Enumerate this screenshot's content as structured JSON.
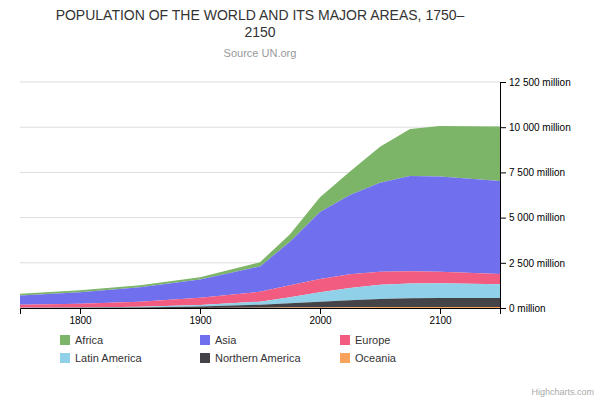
{
  "chart_data": {
    "type": "area",
    "stacked": true,
    "title": "POPULATION OF THE WORLD AND ITS MAJOR AREAS, 1750–\n2150",
    "subtitle": "Source UN.org",
    "annotations": [
      "Highcharts.com"
    ],
    "x": [
      1750,
      1800,
      1850,
      1900,
      1950,
      1975,
      2000,
      2025,
      2050,
      2075,
      2100,
      2150
    ],
    "series": [
      {
        "name": "Africa",
        "color": "#7cb568",
        "values": [
          106,
          107,
          111,
          133,
          229,
          416,
          811,
          1300,
          2000,
          2600,
          2800,
          3003
        ]
      },
      {
        "name": "Asia",
        "color": "#7070ee",
        "values": [
          502,
          635,
          809,
          1000,
          1403,
          2397,
          3714,
          4394,
          4923,
          5267,
          5268,
          5142
        ]
      },
      {
        "name": "Europe",
        "color": "#f15c80",
        "values": [
          163,
          203,
          276,
          408,
          547,
          676,
          730,
          750,
          720,
          680,
          640,
          580
        ]
      },
      {
        "name": "Latin America",
        "color": "#90d0e8",
        "values": [
          16,
          24,
          38,
          74,
          167,
          324,
          521,
          680,
          783,
          820,
          809,
          750
        ]
      },
      {
        "name": "Northern America",
        "color": "#434348",
        "values": [
          2,
          7,
          26,
          82,
          172,
          243,
          319,
          388,
          446,
          481,
          499,
          500
        ]
      },
      {
        "name": "Oceania",
        "color": "#f7a35c",
        "values": [
          2,
          2,
          2,
          6,
          13,
          21,
          31,
          42,
          51,
          56,
          57,
          57
        ]
      }
    ],
    "xlim": [
      1750,
      2150
    ],
    "xticks": [
      1800,
      1900,
      2000,
      2100
    ],
    "ylim": [
      0,
      12500
    ],
    "yticks": [
      {
        "value": 0,
        "label": "0 million"
      },
      {
        "value": 2500,
        "label": "2 500 million"
      },
      {
        "value": 5000,
        "label": "5 000 million"
      },
      {
        "value": 7500,
        "label": "7 500 million"
      },
      {
        "value": 10000,
        "label": "10 000 million"
      },
      {
        "value": 12500,
        "label": "12 500 million"
      }
    ],
    "grid": true,
    "legend": "bottom"
  }
}
